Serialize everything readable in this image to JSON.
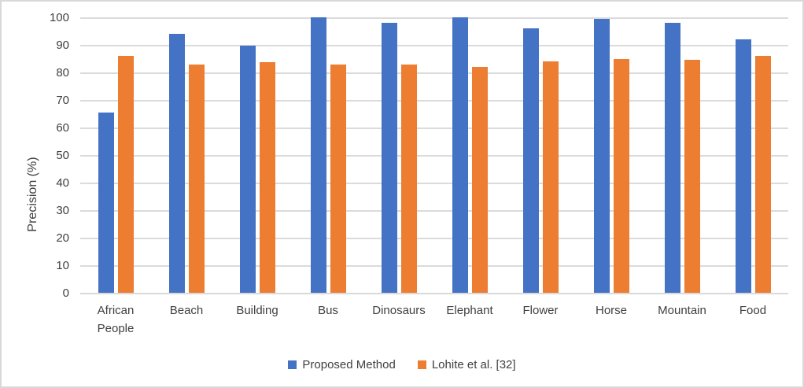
{
  "chart_data": {
    "type": "bar",
    "title": "",
    "xlabel": "",
    "ylabel": "Precision (%)",
    "ylim": [
      0,
      100
    ],
    "yticks": [
      0,
      10,
      20,
      30,
      40,
      50,
      60,
      70,
      80,
      90,
      100
    ],
    "grid": true,
    "legend_position": "bottom",
    "categories": [
      "African People",
      "Beach",
      "Building",
      "Bus",
      "Dinosaurs",
      "Elephant",
      "Flower",
      "Horse",
      "Mountain",
      "Food"
    ],
    "series": [
      {
        "name": "Proposed Method",
        "color": "#4472C4",
        "values": [
          65.5,
          94,
          89.8,
          100,
          98,
          100,
          96,
          99.5,
          98,
          92
        ]
      },
      {
        "name": "Lohite et al. [32]",
        "color": "#ED7D31",
        "values": [
          86,
          83,
          83.7,
          83,
          83,
          82,
          84,
          85,
          84.5,
          86
        ]
      }
    ],
    "colors": {
      "grid": "#DBDBDB",
      "axis": "#D9D9D9",
      "text": "#404040",
      "border": "#D9D9D9",
      "background": "#FFFFFF"
    }
  }
}
